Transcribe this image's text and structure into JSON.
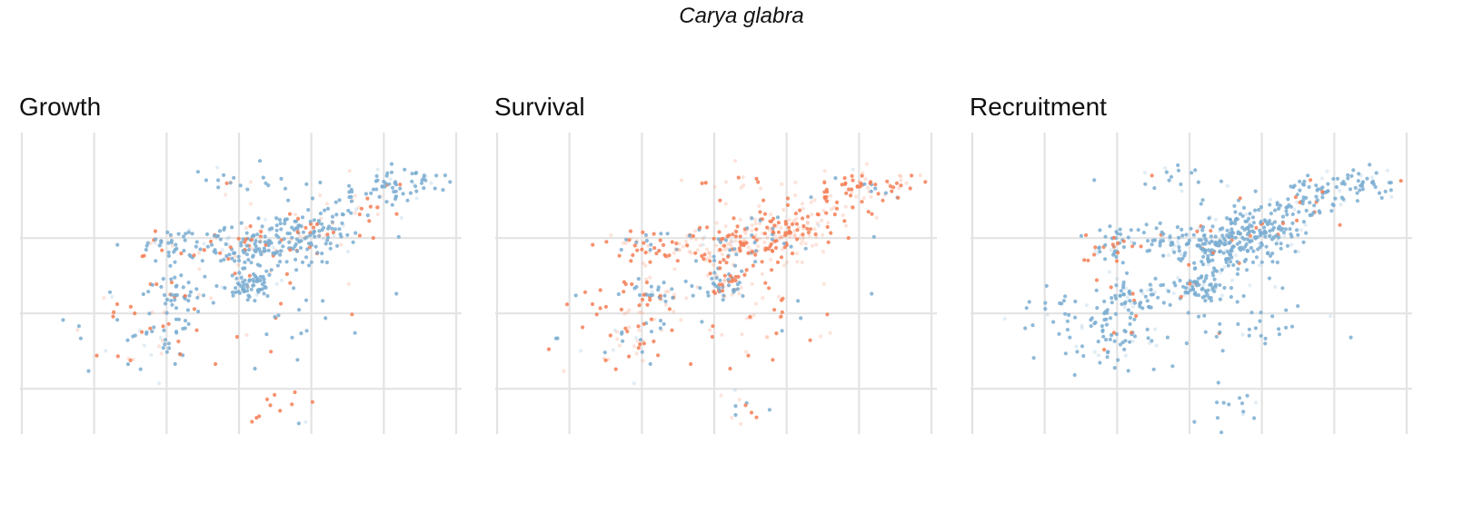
{
  "figure": {
    "title": "Carya glabra"
  },
  "colors": {
    "blue": "#7aadd1",
    "orange": "#f47e55",
    "grid": "#e3e3e3"
  },
  "chart_data": [
    {
      "type": "scatter",
      "title": "Growth",
      "xlim": [
        0,
        6
      ],
      "ylim": [
        0,
        4
      ],
      "grid": true,
      "x_gridlines": [
        0,
        1,
        2,
        3,
        4,
        5,
        6
      ],
      "y_gridlines": [
        0.6,
        1.6,
        2.6
      ],
      "xlabel": "",
      "ylabel": "",
      "legend": "none",
      "dominant_color": "blue",
      "clusters": [
        {
          "cx": 3.9,
          "cy": 2.65,
          "sx": 0.35,
          "sy": 0.18,
          "n": 140,
          "oc": 0.22
        },
        {
          "cx": 3.3,
          "cy": 2.42,
          "sx": 0.25,
          "sy": 0.15,
          "n": 90,
          "oc": 0.25
        },
        {
          "cx": 3.1,
          "cy": 1.97,
          "sx": 0.2,
          "sy": 0.09,
          "n": 70,
          "oc": 0.05
        },
        {
          "cx": 2.7,
          "cy": 2.57,
          "sx": 0.3,
          "sy": 0.12,
          "n": 50,
          "oc": 0.25
        },
        {
          "cx": 1.9,
          "cy": 2.5,
          "sx": 0.25,
          "sy": 0.12,
          "n": 40,
          "oc": 0.2
        },
        {
          "cx": 2.2,
          "cy": 1.85,
          "sx": 0.25,
          "sy": 0.12,
          "n": 40,
          "oc": 0.3
        },
        {
          "cx": 1.9,
          "cy": 1.4,
          "sx": 0.3,
          "sy": 0.25,
          "n": 55,
          "oc": 0.35
        },
        {
          "cx": 5.2,
          "cy": 3.3,
          "sx": 0.35,
          "sy": 0.12,
          "n": 60,
          "oc": 0.1
        },
        {
          "cx": 4.6,
          "cy": 3.05,
          "sx": 0.3,
          "sy": 0.2,
          "n": 40,
          "oc": 0.35
        },
        {
          "cx": 3.0,
          "cy": 3.35,
          "sx": 0.35,
          "sy": 0.12,
          "n": 20,
          "oc": 0.4
        },
        {
          "cx": 3.5,
          "cy": 0.35,
          "sx": 0.25,
          "sy": 0.15,
          "n": 12,
          "oc": 0.85
        },
        {
          "cx": 1.1,
          "cy": 1.5,
          "sx": 0.3,
          "sy": 0.3,
          "n": 14,
          "oc": 0.35
        },
        {
          "cx": 3.6,
          "cy": 1.5,
          "sx": 0.6,
          "sy": 0.3,
          "n": 25,
          "oc": 0.3
        }
      ],
      "orange_faint_share": 0.35,
      "blue_faint_share": 0.1
    },
    {
      "type": "scatter",
      "title": "Survival",
      "xlim": [
        0,
        6
      ],
      "ylim": [
        0,
        4
      ],
      "grid": true,
      "x_gridlines": [
        0,
        1,
        2,
        3,
        4,
        5,
        6
      ],
      "y_gridlines": [
        0.6,
        1.6,
        2.6
      ],
      "xlabel": "",
      "ylabel": "",
      "legend": "none",
      "dominant_color": "orange",
      "clusters": [
        {
          "cx": 3.9,
          "cy": 2.65,
          "sx": 0.35,
          "sy": 0.18,
          "n": 150,
          "oc": 0.88
        },
        {
          "cx": 3.3,
          "cy": 2.42,
          "sx": 0.25,
          "sy": 0.15,
          "n": 80,
          "oc": 0.8
        },
        {
          "cx": 3.1,
          "cy": 1.97,
          "sx": 0.2,
          "sy": 0.09,
          "n": 60,
          "oc": 0.6
        },
        {
          "cx": 2.7,
          "cy": 2.57,
          "sx": 0.3,
          "sy": 0.12,
          "n": 50,
          "oc": 0.8
        },
        {
          "cx": 1.9,
          "cy": 2.5,
          "sx": 0.25,
          "sy": 0.12,
          "n": 40,
          "oc": 0.82
        },
        {
          "cx": 2.2,
          "cy": 1.85,
          "sx": 0.25,
          "sy": 0.12,
          "n": 40,
          "oc": 0.7
        },
        {
          "cx": 1.9,
          "cy": 1.4,
          "sx": 0.3,
          "sy": 0.25,
          "n": 55,
          "oc": 0.82
        },
        {
          "cx": 5.2,
          "cy": 3.3,
          "sx": 0.35,
          "sy": 0.12,
          "n": 55,
          "oc": 0.85
        },
        {
          "cx": 4.6,
          "cy": 3.05,
          "sx": 0.3,
          "sy": 0.2,
          "n": 50,
          "oc": 0.9
        },
        {
          "cx": 3.0,
          "cy": 3.35,
          "sx": 0.35,
          "sy": 0.12,
          "n": 15,
          "oc": 0.9
        },
        {
          "cx": 3.5,
          "cy": 0.35,
          "sx": 0.25,
          "sy": 0.15,
          "n": 12,
          "oc": 0.7
        },
        {
          "cx": 1.1,
          "cy": 1.5,
          "sx": 0.3,
          "sy": 0.3,
          "n": 14,
          "oc": 0.6
        },
        {
          "cx": 3.6,
          "cy": 1.5,
          "sx": 0.6,
          "sy": 0.3,
          "n": 40,
          "oc": 0.9
        }
      ],
      "orange_faint_share": 0.5,
      "blue_faint_share": 0.1
    },
    {
      "type": "scatter",
      "title": "Recruitment",
      "xlim": [
        0,
        6
      ],
      "ylim": [
        0,
        4
      ],
      "grid": true,
      "x_gridlines": [
        0,
        1,
        2,
        3,
        4,
        5,
        6
      ],
      "y_gridlines": [
        0.6,
        1.6,
        2.6
      ],
      "xlabel": "",
      "ylabel": "",
      "legend": "none",
      "dominant_color": "blue",
      "clusters": [
        {
          "cx": 3.9,
          "cy": 2.65,
          "sx": 0.35,
          "sy": 0.18,
          "n": 190,
          "oc": 0.06
        },
        {
          "cx": 3.3,
          "cy": 2.42,
          "sx": 0.25,
          "sy": 0.15,
          "n": 100,
          "oc": 0.05
        },
        {
          "cx": 3.1,
          "cy": 1.97,
          "sx": 0.2,
          "sy": 0.09,
          "n": 70,
          "oc": 0.04
        },
        {
          "cx": 2.7,
          "cy": 2.57,
          "sx": 0.3,
          "sy": 0.12,
          "n": 55,
          "oc": 0.05
        },
        {
          "cx": 1.9,
          "cy": 2.5,
          "sx": 0.25,
          "sy": 0.12,
          "n": 45,
          "oc": 0.45
        },
        {
          "cx": 2.2,
          "cy": 1.85,
          "sx": 0.25,
          "sy": 0.12,
          "n": 55,
          "oc": 0.05
        },
        {
          "cx": 1.9,
          "cy": 1.4,
          "sx": 0.3,
          "sy": 0.25,
          "n": 75,
          "oc": 0.04
        },
        {
          "cx": 5.2,
          "cy": 3.3,
          "sx": 0.35,
          "sy": 0.12,
          "n": 60,
          "oc": 0.05
        },
        {
          "cx": 4.6,
          "cy": 3.05,
          "sx": 0.3,
          "sy": 0.2,
          "n": 60,
          "oc": 0.05
        },
        {
          "cx": 3.0,
          "cy": 3.35,
          "sx": 0.35,
          "sy": 0.12,
          "n": 20,
          "oc": 0.05
        },
        {
          "cx": 3.5,
          "cy": 0.35,
          "sx": 0.25,
          "sy": 0.15,
          "n": 14,
          "oc": 0.0
        },
        {
          "cx": 1.1,
          "cy": 1.5,
          "sx": 0.3,
          "sy": 0.3,
          "n": 22,
          "oc": 0.05
        },
        {
          "cx": 3.6,
          "cy": 1.5,
          "sx": 0.6,
          "sy": 0.3,
          "n": 45,
          "oc": 0.05
        }
      ],
      "orange_faint_share": 0.0,
      "blue_faint_share": 0.15
    }
  ]
}
